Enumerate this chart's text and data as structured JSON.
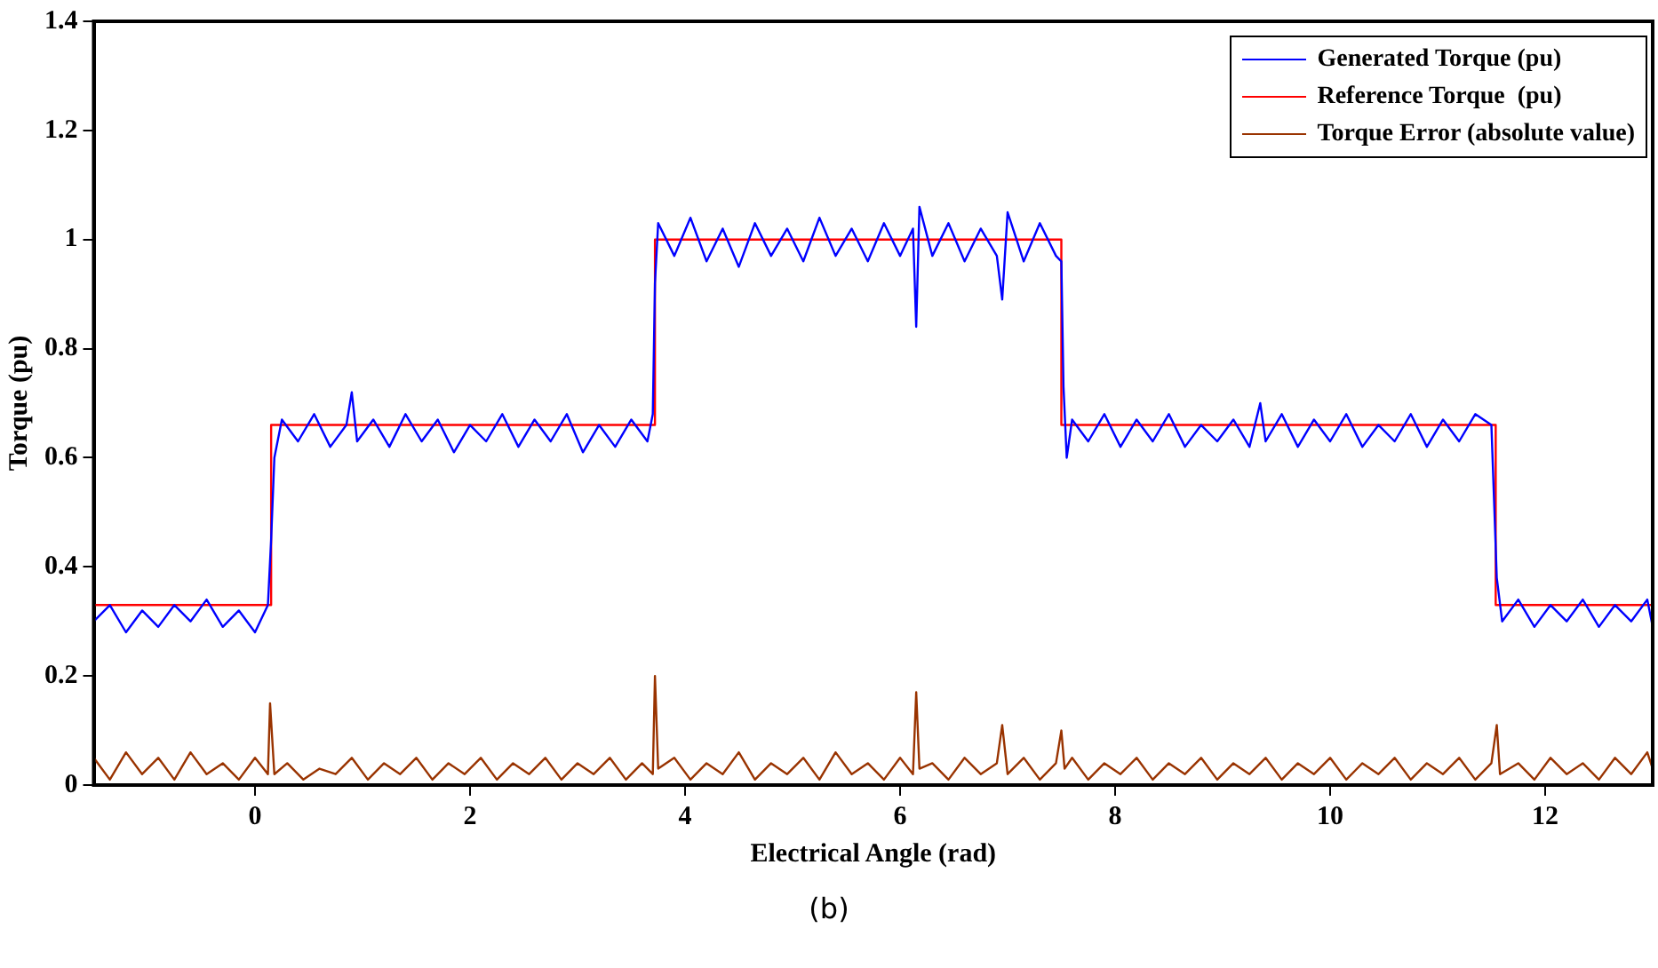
{
  "chart_data": {
    "type": "line",
    "xlabel": "Electrical Angle (rad)",
    "ylabel": "Torque (pu)",
    "annotations": [
      "(b)"
    ],
    "xlim": [
      -1.5,
      13.0
    ],
    "xticks": [
      0,
      2,
      4,
      6,
      8,
      10,
      12
    ],
    "ylim": [
      0,
      1.4
    ],
    "yticks": [
      0,
      0.2,
      0.4,
      0.6,
      0.8,
      1,
      1.2,
      1.4
    ],
    "grid": false,
    "legend": "top right",
    "marker": "none",
    "line_style": "solid",
    "series": [
      {
        "name": "Generated Torque (pu)",
        "color": "#0000ff",
        "x": [
          -1.5,
          -1.35,
          -1.2,
          -1.05,
          -0.9,
          -0.75,
          -0.6,
          -0.45,
          -0.3,
          -0.15,
          0.0,
          0.12,
          0.15,
          0.18,
          0.25,
          0.4,
          0.55,
          0.7,
          0.85,
          0.9,
          0.95,
          1.1,
          1.25,
          1.4,
          1.55,
          1.7,
          1.85,
          2.0,
          2.15,
          2.3,
          2.45,
          2.6,
          2.75,
          2.9,
          3.05,
          3.2,
          3.35,
          3.5,
          3.65,
          3.7,
          3.72,
          3.75,
          3.9,
          4.05,
          4.2,
          4.35,
          4.5,
          4.65,
          4.8,
          4.95,
          5.1,
          5.25,
          5.4,
          5.55,
          5.7,
          5.85,
          6.0,
          6.12,
          6.15,
          6.18,
          6.3,
          6.45,
          6.6,
          6.75,
          6.9,
          6.95,
          7.0,
          7.15,
          7.3,
          7.45,
          7.5,
          7.52,
          7.55,
          7.6,
          7.75,
          7.9,
          8.05,
          8.2,
          8.35,
          8.5,
          8.65,
          8.8,
          8.95,
          9.1,
          9.25,
          9.35,
          9.4,
          9.55,
          9.7,
          9.85,
          10.0,
          10.15,
          10.3,
          10.45,
          10.6,
          10.75,
          10.9,
          11.05,
          11.2,
          11.35,
          11.5,
          11.55,
          11.6,
          11.75,
          11.9,
          12.05,
          12.2,
          12.35,
          12.5,
          12.65,
          12.8,
          12.95,
          13.0
        ],
        "values": [
          0.3,
          0.33,
          0.28,
          0.32,
          0.29,
          0.33,
          0.3,
          0.34,
          0.29,
          0.32,
          0.28,
          0.33,
          0.45,
          0.6,
          0.67,
          0.63,
          0.68,
          0.62,
          0.66,
          0.72,
          0.63,
          0.67,
          0.62,
          0.68,
          0.63,
          0.67,
          0.61,
          0.66,
          0.63,
          0.68,
          0.62,
          0.67,
          0.63,
          0.68,
          0.61,
          0.66,
          0.62,
          0.67,
          0.63,
          0.68,
          0.92,
          1.03,
          0.97,
          1.04,
          0.96,
          1.02,
          0.95,
          1.03,
          0.97,
          1.02,
          0.96,
          1.04,
          0.97,
          1.02,
          0.96,
          1.03,
          0.97,
          1.02,
          0.84,
          1.06,
          0.97,
          1.03,
          0.96,
          1.02,
          0.97,
          0.89,
          1.05,
          0.96,
          1.03,
          0.97,
          0.96,
          0.73,
          0.6,
          0.67,
          0.63,
          0.68,
          0.62,
          0.67,
          0.63,
          0.68,
          0.62,
          0.66,
          0.63,
          0.67,
          0.62,
          0.7,
          0.63,
          0.68,
          0.62,
          0.67,
          0.63,
          0.68,
          0.62,
          0.66,
          0.63,
          0.68,
          0.62,
          0.67,
          0.63,
          0.68,
          0.66,
          0.38,
          0.3,
          0.34,
          0.29,
          0.33,
          0.3,
          0.34,
          0.29,
          0.33,
          0.3,
          0.34,
          0.29
        ]
      },
      {
        "name": "Reference Torque  (pu)",
        "color": "#ff0000",
        "type": "step",
        "x": [
          -1.5,
          0.15,
          3.72,
          7.5,
          11.54,
          13.0
        ],
        "values": [
          0.33,
          0.66,
          1.0,
          0.66,
          0.33,
          0.33
        ]
      },
      {
        "name": "Torque Error (absolute value)",
        "color": "#993300",
        "x": [
          -1.5,
          -1.35,
          -1.2,
          -1.05,
          -0.9,
          -0.75,
          -0.6,
          -0.45,
          -0.3,
          -0.15,
          0.0,
          0.12,
          0.14,
          0.18,
          0.3,
          0.45,
          0.6,
          0.75,
          0.9,
          1.05,
          1.2,
          1.35,
          1.5,
          1.65,
          1.8,
          1.95,
          2.1,
          2.25,
          2.4,
          2.55,
          2.7,
          2.85,
          3.0,
          3.15,
          3.3,
          3.45,
          3.6,
          3.7,
          3.72,
          3.75,
          3.9,
          4.05,
          4.2,
          4.35,
          4.5,
          4.65,
          4.8,
          4.95,
          5.1,
          5.25,
          5.4,
          5.55,
          5.7,
          5.85,
          6.0,
          6.12,
          6.15,
          6.18,
          6.3,
          6.45,
          6.6,
          6.75,
          6.9,
          6.95,
          7.0,
          7.15,
          7.3,
          7.45,
          7.5,
          7.53,
          7.6,
          7.75,
          7.9,
          8.05,
          8.2,
          8.35,
          8.5,
          8.65,
          8.8,
          8.95,
          9.1,
          9.25,
          9.4,
          9.55,
          9.7,
          9.85,
          10.0,
          10.15,
          10.3,
          10.45,
          10.6,
          10.75,
          10.9,
          11.05,
          11.2,
          11.35,
          11.5,
          11.55,
          11.58,
          11.75,
          11.9,
          12.05,
          12.2,
          12.35,
          12.5,
          12.65,
          12.8,
          12.95,
          13.0
        ],
        "values": [
          0.05,
          0.01,
          0.06,
          0.02,
          0.05,
          0.01,
          0.06,
          0.02,
          0.04,
          0.01,
          0.05,
          0.02,
          0.15,
          0.02,
          0.04,
          0.01,
          0.03,
          0.02,
          0.05,
          0.01,
          0.04,
          0.02,
          0.05,
          0.01,
          0.04,
          0.02,
          0.05,
          0.01,
          0.04,
          0.02,
          0.05,
          0.01,
          0.04,
          0.02,
          0.05,
          0.01,
          0.04,
          0.02,
          0.2,
          0.03,
          0.05,
          0.01,
          0.04,
          0.02,
          0.06,
          0.01,
          0.04,
          0.02,
          0.05,
          0.01,
          0.06,
          0.02,
          0.04,
          0.01,
          0.05,
          0.02,
          0.17,
          0.03,
          0.04,
          0.01,
          0.05,
          0.02,
          0.04,
          0.11,
          0.02,
          0.05,
          0.01,
          0.04,
          0.1,
          0.03,
          0.05,
          0.01,
          0.04,
          0.02,
          0.05,
          0.01,
          0.04,
          0.02,
          0.05,
          0.01,
          0.04,
          0.02,
          0.05,
          0.01,
          0.04,
          0.02,
          0.05,
          0.01,
          0.04,
          0.02,
          0.05,
          0.01,
          0.04,
          0.02,
          0.05,
          0.01,
          0.04,
          0.11,
          0.02,
          0.04,
          0.01,
          0.05,
          0.02,
          0.04,
          0.01,
          0.05,
          0.02,
          0.06,
          0.03
        ]
      }
    ]
  }
}
